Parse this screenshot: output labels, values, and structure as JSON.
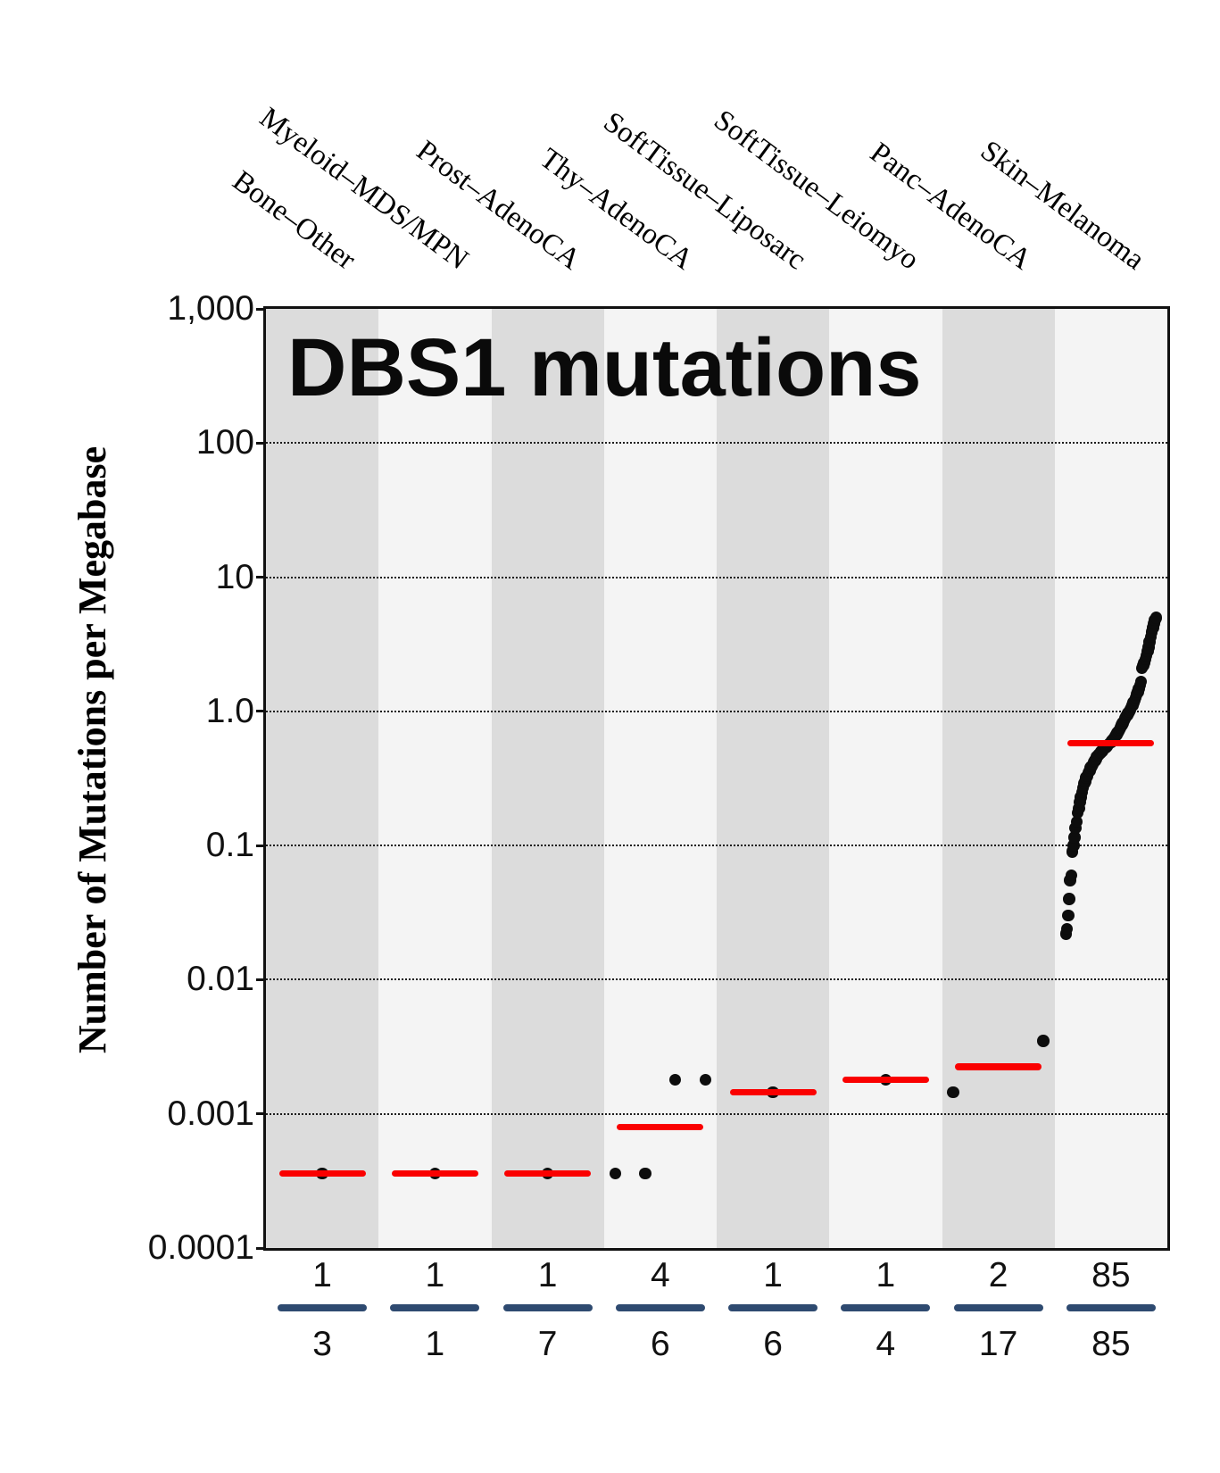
{
  "chart_data": {
    "type": "scatter",
    "title": "DBS1 mutations",
    "ylabel": "Number of Mutations per Megabase",
    "xlabel": "",
    "yscale": "log",
    "ylim": [
      0.0001,
      1000
    ],
    "yticks": [
      1000,
      100,
      10,
      1,
      0.1,
      0.01,
      0.001,
      0.0001
    ],
    "ytick_labels": [
      "1,000",
      "100",
      "10",
      "1.0",
      "0.1",
      "0.01",
      "0.001",
      "0.0001"
    ],
    "grid": "dotted horizontal lines at each decade",
    "legend": "none",
    "categories": [
      "Bone–Other",
      "Myeloid–MDS/MPN",
      "Prost–AdenoCA",
      "Thy–AdenoCA",
      "SoftTissue–Liposarc",
      "SoftTissue–Leiomyo",
      "Panc–AdenoCA",
      "Skin–Melanoma"
    ],
    "series": [
      {
        "name": "Bone–Other",
        "median": 0.00036,
        "values": [
          0.00036
        ],
        "n_with_signature": "1",
        "n_total": "3"
      },
      {
        "name": "Myeloid–MDS/MPN",
        "median": 0.00036,
        "values": [
          0.00036
        ],
        "n_with_signature": "1",
        "n_total": "1"
      },
      {
        "name": "Prost–AdenoCA",
        "median": 0.00036,
        "values": [
          0.00036
        ],
        "n_with_signature": "1",
        "n_total": "7"
      },
      {
        "name": "Thy–AdenoCA",
        "median": 0.0008,
        "values": [
          0.00036,
          0.00036,
          0.0018,
          0.0018
        ],
        "n_with_signature": "4",
        "n_total": "6"
      },
      {
        "name": "SoftTissue–Liposarc",
        "median": 0.00145,
        "values": [
          0.00145
        ],
        "n_with_signature": "1",
        "n_total": "6"
      },
      {
        "name": "SoftTissue–Leiomyo",
        "median": 0.0018,
        "values": [
          0.0018
        ],
        "n_with_signature": "1",
        "n_total": "4"
      },
      {
        "name": "Panc–AdenoCA",
        "median": 0.00225,
        "values": [
          0.00145,
          0.0035
        ],
        "n_with_signature": "2",
        "n_total": "17"
      },
      {
        "name": "Skin–Melanoma",
        "median": 0.58,
        "values": [
          0.022,
          0.024,
          0.03,
          0.04,
          0.055,
          0.06,
          0.09,
          0.1,
          0.115,
          0.135,
          0.15,
          0.175,
          0.19,
          0.21,
          0.23,
          0.25,
          0.27,
          0.29,
          0.3,
          0.32,
          0.33,
          0.35,
          0.36,
          0.38,
          0.39,
          0.4,
          0.42,
          0.43,
          0.44,
          0.46,
          0.47,
          0.48,
          0.49,
          0.5,
          0.51,
          0.52,
          0.53,
          0.54,
          0.55,
          0.56,
          0.57,
          0.58,
          0.59,
          0.6,
          0.62,
          0.63,
          0.65,
          0.67,
          0.69,
          0.71,
          0.73,
          0.76,
          0.79,
          0.82,
          0.85,
          0.88,
          0.91,
          0.94,
          0.97,
          1.0,
          1.03,
          1.07,
          1.11,
          1.16,
          1.21,
          1.27,
          1.33,
          1.4,
          1.48,
          1.57,
          1.67,
          2.1,
          2.2,
          2.3,
          2.45,
          2.6,
          2.8,
          3.0,
          3.3,
          3.6,
          3.9,
          4.2,
          4.5,
          4.8,
          5.0
        ],
        "n_with_signature": "85",
        "n_total": "85"
      }
    ],
    "colors": {
      "median_line": "#fa0000",
      "data_point": "#0d0d0d",
      "count_bar": "#2e4a70",
      "band_dark": "#dcdcdc",
      "band_light": "#f4f4f4",
      "axis_and_text": "#111111"
    },
    "annotations": {
      "counts_top_row": [
        "1",
        "1",
        "1",
        "4",
        "1",
        "1",
        "2",
        "85"
      ],
      "counts_bottom_row": [
        "3",
        "1",
        "7",
        "6",
        "6",
        "4",
        "17",
        "85"
      ]
    }
  }
}
